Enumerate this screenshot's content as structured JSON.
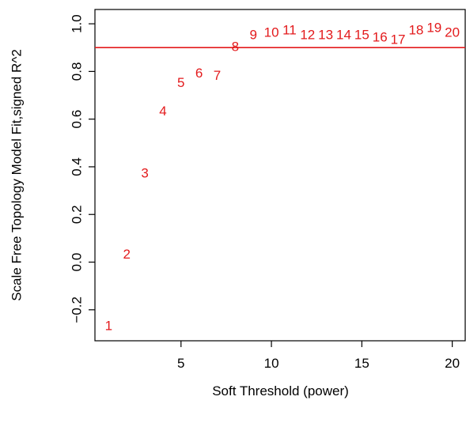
{
  "chart_data": {
    "type": "scatter",
    "title": "",
    "xlabel": "Soft Threshold (power)",
    "ylabel": "Scale Free Topology Model Fit,signed R^2",
    "xlim": [
      0.24,
      20.76
    ],
    "ylim": [
      -0.33,
      1.06
    ],
    "xticks": [
      5,
      10,
      15,
      20
    ],
    "xtick_labels": [
      "5",
      "10",
      "15",
      "20"
    ],
    "yticks": [
      -0.2,
      0.0,
      0.2,
      0.4,
      0.6,
      0.8,
      1.0
    ],
    "ytick_labels": [
      "−0.2",
      "0.0",
      "0.2",
      "0.4",
      "0.6",
      "0.8",
      "1.0"
    ],
    "grid": false,
    "legend": "none",
    "points": [
      {
        "x": 1,
        "y": -0.27,
        "label": "1"
      },
      {
        "x": 2,
        "y": 0.03,
        "label": "2"
      },
      {
        "x": 3,
        "y": 0.37,
        "label": "3"
      },
      {
        "x": 4,
        "y": 0.63,
        "label": "4"
      },
      {
        "x": 5,
        "y": 0.75,
        "label": "5"
      },
      {
        "x": 6,
        "y": 0.79,
        "label": "6"
      },
      {
        "x": 7,
        "y": 0.78,
        "label": "7"
      },
      {
        "x": 8,
        "y": 0.9,
        "label": "8"
      },
      {
        "x": 9,
        "y": 0.95,
        "label": "9"
      },
      {
        "x": 10,
        "y": 0.96,
        "label": "10"
      },
      {
        "x": 11,
        "y": 0.97,
        "label": "11"
      },
      {
        "x": 12,
        "y": 0.95,
        "label": "12"
      },
      {
        "x": 13,
        "y": 0.95,
        "label": "13"
      },
      {
        "x": 14,
        "y": 0.95,
        "label": "14"
      },
      {
        "x": 15,
        "y": 0.95,
        "label": "15"
      },
      {
        "x": 16,
        "y": 0.94,
        "label": "16"
      },
      {
        "x": 17,
        "y": 0.93,
        "label": "17"
      },
      {
        "x": 18,
        "y": 0.97,
        "label": "18"
      },
      {
        "x": 19,
        "y": 0.98,
        "label": "19"
      },
      {
        "x": 20,
        "y": 0.96,
        "label": "20"
      }
    ],
    "reference_line": {
      "orientation": "horizontal",
      "y": 0.9
    },
    "colors": {
      "points": "#e31a1c",
      "reference_line": "#e31a1c",
      "axes": "#000000"
    }
  }
}
